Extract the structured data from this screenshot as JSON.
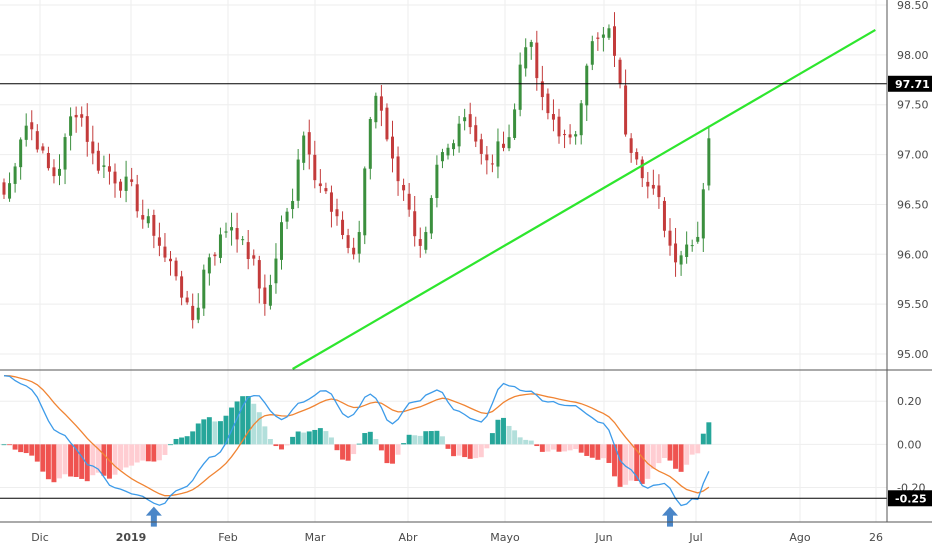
{
  "colors": {
    "up": "#3b8f3e",
    "down": "#c33b3b",
    "trendline": "#2ee62e",
    "level": "#000000",
    "macd": "#3d9be9",
    "signal": "#f08433",
    "hist_up_strong": "#26a69a",
    "hist_up_weak": "#b2dfdb",
    "hist_down_strong": "#ef5350",
    "hist_down_weak": "#ffcdd2",
    "arrow": "#4a86c8",
    "grid": "#eeeeee",
    "badge": "#000000"
  },
  "icons": {
    "arrow": "arrow-up-icon"
  },
  "chart_data": [
    {
      "type": "candlestick",
      "ylim": [
        94.85,
        98.55
      ],
      "y_ticks": [
        "98.50",
        "98.00",
        "97.50",
        "97.00",
        "96.50",
        "96.00",
        "95.50",
        "95.00"
      ],
      "x_labels": [
        "Dic",
        "2019",
        "Feb",
        "Mar",
        "Abr",
        "Mayo",
        "Jun",
        "Jul",
        "Ago",
        "26"
      ],
      "horizontal_level": {
        "value": 97.71,
        "label": "97.71"
      },
      "trendline": {
        "from": {
          "bar": 52,
          "value": 94.85
        },
        "to": {
          "bar": 157,
          "value": 98.25
        }
      },
      "anchors": [
        [
          0,
          96.6
        ],
        [
          4,
          97.3
        ],
        [
          9,
          96.8
        ],
        [
          13,
          97.45
        ],
        [
          17,
          96.9
        ],
        [
          22,
          96.7
        ],
        [
          26,
          96.3
        ],
        [
          30,
          95.9
        ],
        [
          34,
          95.35
        ],
        [
          37,
          96.0
        ],
        [
          41,
          96.3
        ],
        [
          44,
          96.0
        ],
        [
          47,
          95.55
        ],
        [
          51,
          96.4
        ],
        [
          54,
          97.2
        ],
        [
          57,
          96.7
        ],
        [
          60,
          96.3
        ],
        [
          63,
          96.0
        ],
        [
          67,
          97.6
        ],
        [
          71,
          96.8
        ],
        [
          75,
          96.0
        ],
        [
          79,
          97.0
        ],
        [
          83,
          97.4
        ],
        [
          87,
          96.9
        ],
        [
          91,
          97.2
        ],
        [
          94,
          98.15
        ],
        [
          98,
          97.4
        ],
        [
          102,
          97.1
        ],
        [
          106,
          98.1
        ],
        [
          109,
          98.2
        ],
        [
          113,
          97.1
        ],
        [
          117,
          96.6
        ],
        [
          121,
          96.0
        ],
        [
          125,
          96.2
        ],
        [
          127,
          97.2
        ]
      ]
    },
    {
      "type": "macd",
      "ylim": [
        -0.36,
        0.34
      ],
      "y_ticks": [
        "0.20",
        "0.00",
        "-0.20"
      ],
      "horizontal_level": {
        "value": -0.25,
        "label": "-0.25"
      },
      "macd_anchors": [
        [
          0,
          0.32
        ],
        [
          4,
          0.27
        ],
        [
          10,
          0.05
        ],
        [
          16,
          -0.1
        ],
        [
          20,
          -0.2
        ],
        [
          24,
          -0.23
        ],
        [
          28,
          -0.28
        ],
        [
          32,
          -0.2
        ],
        [
          38,
          -0.05
        ],
        [
          45,
          0.23
        ],
        [
          50,
          0.12
        ],
        [
          54,
          0.2
        ],
        [
          58,
          0.25
        ],
        [
          62,
          0.12
        ],
        [
          66,
          0.23
        ],
        [
          70,
          0.1
        ],
        [
          74,
          0.2
        ],
        [
          78,
          0.25
        ],
        [
          82,
          0.15
        ],
        [
          86,
          0.1
        ],
        [
          90,
          0.28
        ],
        [
          94,
          0.25
        ],
        [
          98,
          0.2
        ],
        [
          102,
          0.18
        ],
        [
          108,
          0.1
        ],
        [
          112,
          -0.1
        ],
        [
          116,
          -0.2
        ],
        [
          119,
          -0.18
        ],
        [
          122,
          -0.28
        ],
        [
          125,
          -0.25
        ],
        [
          127,
          -0.12
        ]
      ],
      "arrows": [
        {
          "bar": 27,
          "value": -0.27
        },
        {
          "bar": 120,
          "value": -0.27
        }
      ]
    }
  ]
}
